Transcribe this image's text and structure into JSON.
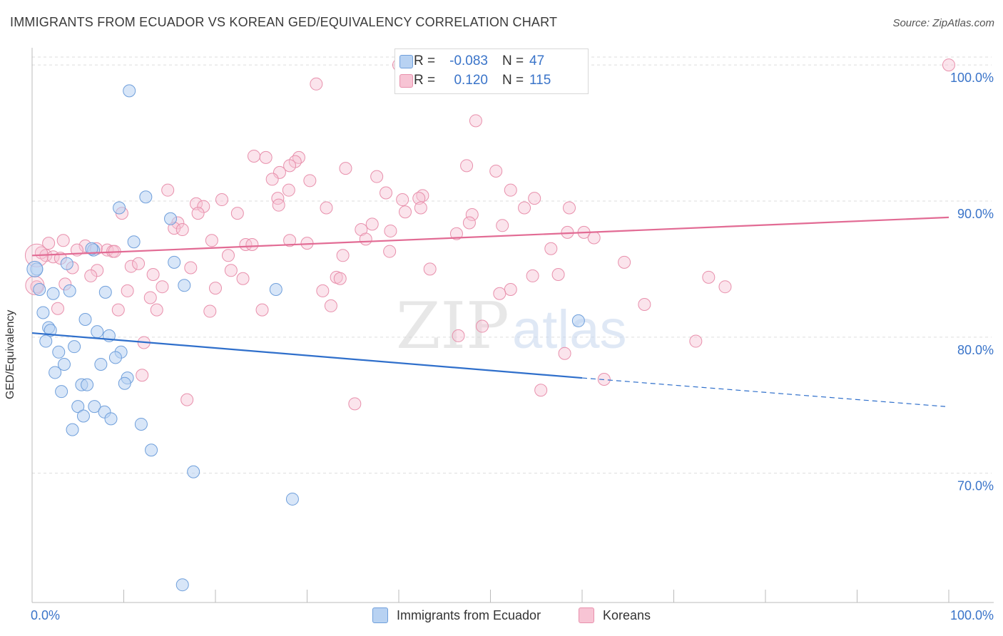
{
  "title": "IMMIGRANTS FROM ECUADOR VS KOREAN GED/EQUIVALENCY CORRELATION CHART",
  "source": "Source: ZipAtlas.com",
  "watermark": {
    "zip": "ZIP",
    "atlas": "atlas"
  },
  "legend": {
    "rows": [
      {
        "r_label": "R =",
        "r_value": "-0.083",
        "n_label": "N =",
        "n_value": "47"
      },
      {
        "r_label": "R =",
        "r_value": "0.120",
        "n_label": "N =",
        "n_value": "115"
      }
    ]
  },
  "bottom_legend": [
    "Immigrants from Ecuador",
    "Koreans"
  ],
  "colors": {
    "ecuador_fill": "#b8d2f2",
    "ecuador_stroke": "#6f9fdb",
    "ecuador_line": "#2f6fcb",
    "korean_fill": "#f7c4d4",
    "korean_stroke": "#e890ac",
    "korean_line": "#e26b94",
    "axis_text": "#3a74c9",
    "grid": "#dddddd"
  },
  "chart_data": {
    "type": "scatter",
    "title": "IMMIGRANTS FROM ECUADOR VS KOREAN GED/EQUIVALENCY CORRELATION CHART",
    "xlabel": "",
    "ylabel": "GED/Equivalency",
    "xlim": [
      0,
      100
    ],
    "ylim": [
      60.5,
      101
    ],
    "x_tick_labels": [
      "0.0%",
      "100.0%"
    ],
    "y_ticks": [
      70,
      80,
      90,
      100
    ],
    "y_tick_labels": [
      "70.0%",
      "80.0%",
      "90.0%",
      "100.0%"
    ],
    "grid": true,
    "series": [
      {
        "name": "Immigrants from Ecuador",
        "r": -0.083,
        "n": 47,
        "trend": {
          "x0": 0,
          "y0": 80.3,
          "x1": 60,
          "y1": 77.0,
          "dash_to_x": 100,
          "dash_to_y": 74.9
        },
        "points": [
          [
            10.6,
            98.1
          ],
          [
            9.5,
            89.5
          ],
          [
            12.4,
            90.3
          ],
          [
            15.1,
            88.7
          ],
          [
            11.1,
            87.0
          ],
          [
            6.7,
            86.4
          ],
          [
            0.5,
            85.0
          ],
          [
            3.8,
            85.4
          ],
          [
            15.5,
            85.5
          ],
          [
            0.8,
            83.5
          ],
          [
            2.3,
            83.2
          ],
          [
            4.1,
            83.4
          ],
          [
            8.0,
            83.3
          ],
          [
            16.6,
            83.8
          ],
          [
            26.6,
            83.5
          ],
          [
            1.2,
            81.8
          ],
          [
            5.8,
            81.3
          ],
          [
            1.8,
            80.7
          ],
          [
            2.0,
            80.5
          ],
          [
            7.1,
            80.4
          ],
          [
            8.4,
            80.1
          ],
          [
            1.5,
            79.7
          ],
          [
            4.6,
            79.3
          ],
          [
            2.9,
            78.9
          ],
          [
            9.7,
            78.9
          ],
          [
            9.1,
            78.5
          ],
          [
            3.5,
            78.0
          ],
          [
            7.5,
            78.0
          ],
          [
            2.5,
            77.4
          ],
          [
            10.4,
            77.0
          ],
          [
            10.1,
            76.6
          ],
          [
            5.4,
            76.5
          ],
          [
            6.0,
            76.5
          ],
          [
            3.2,
            76.0
          ],
          [
            5.0,
            74.9
          ],
          [
            6.8,
            74.9
          ],
          [
            7.9,
            74.5
          ],
          [
            5.6,
            74.2
          ],
          [
            8.6,
            74.0
          ],
          [
            11.9,
            73.6
          ],
          [
            4.4,
            73.2
          ],
          [
            13.0,
            71.7
          ],
          [
            17.6,
            70.1
          ],
          [
            28.4,
            68.1
          ],
          [
            16.4,
            61.8
          ],
          [
            59.6,
            81.2
          ],
          [
            6.5,
            86.5
          ]
        ]
      },
      {
        "name": "Koreans",
        "r": 0.12,
        "n": 115,
        "trend": {
          "x0": 0,
          "y0": 86.0,
          "x1": 100,
          "y1": 88.8
        },
        "points": [
          [
            40.0,
            100.0
          ],
          [
            100.0,
            100.0
          ],
          [
            31.0,
            98.6
          ],
          [
            48.4,
            95.9
          ],
          [
            24.2,
            93.3
          ],
          [
            25.5,
            93.2
          ],
          [
            29.1,
            93.2
          ],
          [
            28.7,
            92.9
          ],
          [
            28.1,
            92.6
          ],
          [
            34.2,
            92.4
          ],
          [
            47.4,
            92.6
          ],
          [
            50.6,
            92.2
          ],
          [
            27.0,
            92.1
          ],
          [
            37.6,
            91.8
          ],
          [
            26.2,
            91.6
          ],
          [
            30.3,
            91.5
          ],
          [
            14.8,
            90.8
          ],
          [
            28.0,
            90.8
          ],
          [
            38.6,
            90.6
          ],
          [
            52.2,
            90.8
          ],
          [
            42.6,
            90.4
          ],
          [
            42.2,
            90.2
          ],
          [
            40.4,
            90.1
          ],
          [
            54.8,
            90.2
          ],
          [
            26.8,
            90.2
          ],
          [
            20.7,
            90.1
          ],
          [
            17.9,
            89.8
          ],
          [
            18.7,
            89.6
          ],
          [
            26.9,
            89.7
          ],
          [
            32.1,
            89.5
          ],
          [
            42.4,
            89.5
          ],
          [
            53.7,
            89.5
          ],
          [
            58.6,
            89.5
          ],
          [
            18.1,
            89.1
          ],
          [
            22.4,
            89.1
          ],
          [
            40.7,
            89.2
          ],
          [
            48.0,
            89.0
          ],
          [
            9.8,
            89.1
          ],
          [
            15.9,
            88.4
          ],
          [
            37.1,
            88.3
          ],
          [
            47.7,
            88.4
          ],
          [
            51.3,
            88.2
          ],
          [
            15.5,
            88.0
          ],
          [
            16.4,
            87.9
          ],
          [
            35.9,
            87.9
          ],
          [
            39.1,
            87.8
          ],
          [
            58.4,
            87.7
          ],
          [
            60.2,
            87.7
          ],
          [
            46.3,
            87.6
          ],
          [
            36.4,
            87.2
          ],
          [
            61.3,
            87.3
          ],
          [
            19.6,
            87.1
          ],
          [
            28.1,
            87.1
          ],
          [
            30.0,
            86.9
          ],
          [
            23.3,
            86.8
          ],
          [
            24.0,
            86.8
          ],
          [
            3.4,
            87.1
          ],
          [
            1.8,
            86.9
          ],
          [
            5.8,
            86.7
          ],
          [
            4.9,
            86.4
          ],
          [
            7.0,
            86.5
          ],
          [
            8.2,
            86.4
          ],
          [
            8.8,
            86.3
          ],
          [
            9.0,
            86.3
          ],
          [
            56.6,
            86.5
          ],
          [
            39.0,
            86.3
          ],
          [
            21.4,
            86.0
          ],
          [
            33.9,
            86.0
          ],
          [
            1.0,
            86.2
          ],
          [
            1.5,
            86.0
          ],
          [
            2.3,
            85.9
          ],
          [
            3.1,
            85.8
          ],
          [
            64.6,
            85.5
          ],
          [
            10.8,
            85.2
          ],
          [
            11.6,
            85.4
          ],
          [
            17.3,
            85.1
          ],
          [
            43.4,
            85.0
          ],
          [
            4.4,
            85.1
          ],
          [
            7.1,
            84.9
          ],
          [
            21.7,
            84.9
          ],
          [
            13.2,
            84.6
          ],
          [
            6.4,
            84.5
          ],
          [
            33.2,
            84.4
          ],
          [
            33.6,
            84.3
          ],
          [
            23.0,
            84.3
          ],
          [
            54.6,
            84.5
          ],
          [
            57.4,
            84.6
          ],
          [
            73.8,
            84.4
          ],
          [
            3.6,
            83.9
          ],
          [
            14.2,
            83.7
          ],
          [
            20.0,
            83.6
          ],
          [
            10.4,
            83.4
          ],
          [
            31.7,
            83.4
          ],
          [
            52.2,
            83.5
          ],
          [
            75.6,
            83.7
          ],
          [
            51.0,
            83.2
          ],
          [
            12.9,
            82.9
          ],
          [
            32.6,
            82.3
          ],
          [
            66.8,
            82.4
          ],
          [
            2.8,
            82.1
          ],
          [
            13.6,
            82.0
          ],
          [
            9.4,
            82.0
          ],
          [
            19.4,
            81.9
          ],
          [
            25.1,
            82.0
          ],
          [
            49.1,
            80.8
          ],
          [
            46.5,
            80.1
          ],
          [
            72.4,
            79.7
          ],
          [
            12.2,
            79.6
          ],
          [
            58.1,
            78.8
          ],
          [
            12.0,
            77.2
          ],
          [
            62.4,
            76.9
          ],
          [
            55.5,
            76.1
          ],
          [
            16.9,
            75.4
          ],
          [
            35.2,
            75.1
          ],
          [
            0.5,
            83.7
          ]
        ]
      }
    ]
  }
}
